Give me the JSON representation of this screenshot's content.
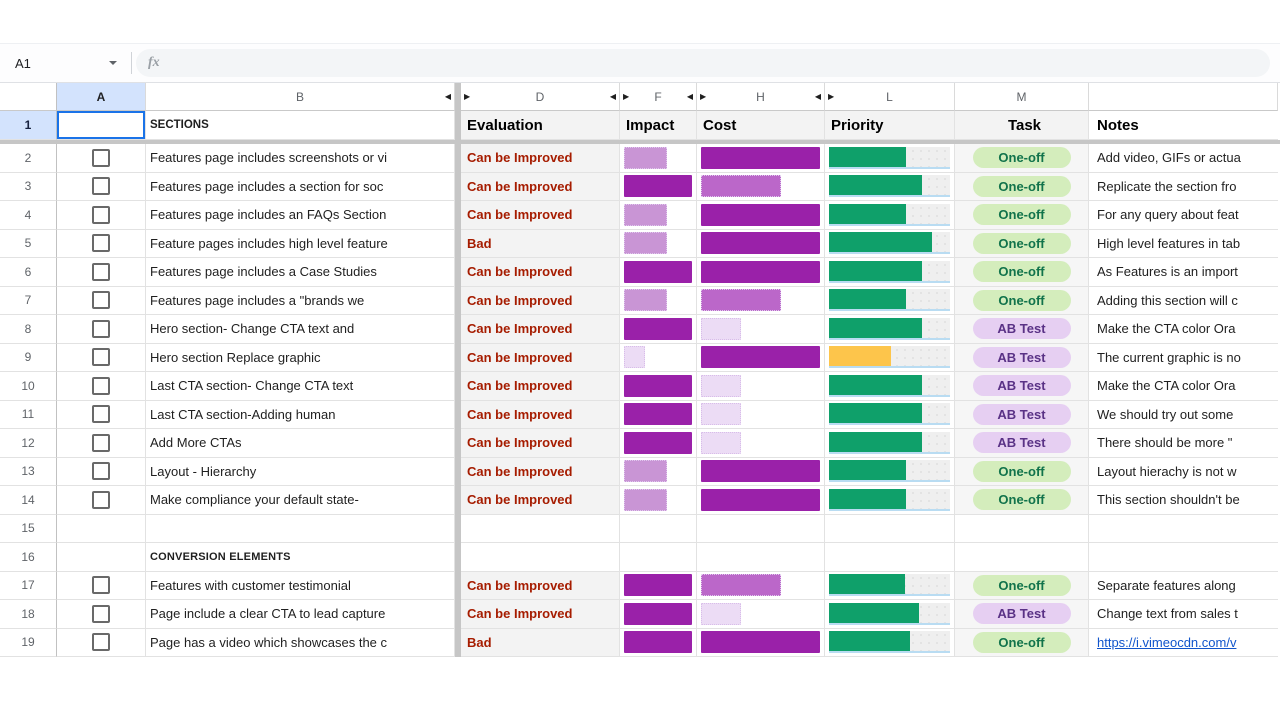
{
  "formula_bar": {
    "name_box": "A1",
    "fx_label": "fx"
  },
  "colors": {
    "bar_dark_purple": "#9a21a9",
    "bar_medium_purple": "#bb67c9",
    "bar_light_purple": "#c995d5",
    "bar_xlight_purple": "#ecdcf5",
    "priority_green": "#0fa06a",
    "priority_yellow": "#fdc54b",
    "priority_track": "#efefef",
    "eval_text": "#a61c00",
    "chip_oneoff_bg": "#d4edbc",
    "chip_oneoff_text": "#11734b",
    "chip_abtest_bg": "#e6cff2",
    "chip_abtest_text": "#5a3286",
    "selection_blue": "#1a73e8",
    "link_blue": "#1155cc",
    "frozen_divider": "#c6c6c6"
  },
  "columns": [
    {
      "letter": "A",
      "selected": true
    },
    {
      "letter": "B",
      "arrow_right": true
    },
    {
      "divider": true
    },
    {
      "letter": "D",
      "arrow_left": true,
      "arrow_right": true
    },
    {
      "letter": "F",
      "arrow_left": true,
      "arrow_right": true
    },
    {
      "letter": "H",
      "arrow_left": true,
      "arrow_right": true
    },
    {
      "letter": "L",
      "arrow_left": true
    },
    {
      "letter": "M"
    },
    {
      "letter": ""
    }
  ],
  "header_row": {
    "num": "1",
    "b": "SECTIONS",
    "d": "Evaluation",
    "f": "Impact",
    "h": "Cost",
    "l": "Priority",
    "m": "Task",
    "n": "Notes"
  },
  "rows": [
    {
      "num": "2",
      "checkbox": true,
      "section": "Features page includes screenshots or vi",
      "evaluation": "Can be Improved",
      "impact": {
        "shade": "light",
        "pct": 63
      },
      "cost": {
        "shade": "dark",
        "pct": 100
      },
      "priority": {
        "color": "green",
        "pct": 64
      },
      "task": "One-off",
      "notes": "Add video, GIFs or actua"
    },
    {
      "num": "3",
      "checkbox": true,
      "section": "Features page includes a section for soc",
      "evaluation": "Can be Improved",
      "impact": {
        "shade": "dark",
        "pct": 100
      },
      "cost": {
        "shade": "medium",
        "pct": 67
      },
      "priority": {
        "color": "green",
        "pct": 77
      },
      "task": "One-off",
      "notes": "Replicate the section fro"
    },
    {
      "num": "4",
      "checkbox": true,
      "section": "Features page includes an FAQs Section",
      "evaluation": "Can be Improved",
      "impact": {
        "shade": "light",
        "pct": 63
      },
      "cost": {
        "shade": "dark",
        "pct": 100
      },
      "priority": {
        "color": "green",
        "pct": 64
      },
      "task": "One-off",
      "notes": "For any query about feat"
    },
    {
      "num": "5",
      "checkbox": true,
      "section": "Feature pages includes high level feature",
      "evaluation": "Bad",
      "impact": {
        "shade": "light",
        "pct": 63
      },
      "cost": {
        "shade": "dark",
        "pct": 100
      },
      "priority": {
        "color": "green",
        "pct": 85
      },
      "task": "One-off",
      "notes": "High level features in tab"
    },
    {
      "num": "6",
      "checkbox": true,
      "section": "Features page includes a Case Studies",
      "evaluation": "Can be Improved",
      "impact": {
        "shade": "dark",
        "pct": 100
      },
      "cost": {
        "shade": "dark",
        "pct": 100
      },
      "priority": {
        "color": "green",
        "pct": 77
      },
      "task": "One-off",
      "notes": "As Features is an import"
    },
    {
      "num": "7",
      "checkbox": true,
      "section": "Features page includes a \"brands we",
      "evaluation": "Can be Improved",
      "impact": {
        "shade": "light",
        "pct": 63
      },
      "cost": {
        "shade": "medium",
        "pct": 67
      },
      "priority": {
        "color": "green",
        "pct": 64
      },
      "task": "One-off",
      "notes": "Adding this section will c"
    },
    {
      "num": "8",
      "checkbox": true,
      "section": "Hero section- Change CTA text and",
      "evaluation": "Can be Improved",
      "impact": {
        "shade": "dark",
        "pct": 100
      },
      "cost": {
        "shade": "xlight",
        "pct": 34
      },
      "priority": {
        "color": "green",
        "pct": 77
      },
      "task": "AB Test",
      "notes": "Make the CTA color Ora"
    },
    {
      "num": "9",
      "checkbox": true,
      "section": "Hero section Replace graphic",
      "evaluation": "Can be Improved",
      "impact": {
        "shade": "xlight",
        "pct": 31
      },
      "cost": {
        "shade": "dark",
        "pct": 100
      },
      "priority": {
        "color": "yellow",
        "pct": 51
      },
      "task": "AB Test",
      "notes": "The current graphic is no"
    },
    {
      "num": "10",
      "checkbox": true,
      "section": "Last CTA section- Change CTA text",
      "evaluation": "Can be Improved",
      "impact": {
        "shade": "dark",
        "pct": 100
      },
      "cost": {
        "shade": "xlight",
        "pct": 34
      },
      "priority": {
        "color": "green",
        "pct": 77
      },
      "task": "AB Test",
      "notes": "Make the CTA color Ora"
    },
    {
      "num": "11",
      "checkbox": true,
      "section": "Last CTA section-Adding human",
      "evaluation": "Can be Improved",
      "impact": {
        "shade": "dark",
        "pct": 100
      },
      "cost": {
        "shade": "xlight",
        "pct": 34
      },
      "priority": {
        "color": "green",
        "pct": 77
      },
      "task": "AB Test",
      "notes": "We should try out some"
    },
    {
      "num": "12",
      "checkbox": true,
      "section": "Add More CTAs",
      "evaluation": "Can be Improved",
      "impact": {
        "shade": "dark",
        "pct": 100
      },
      "cost": {
        "shade": "xlight",
        "pct": 34
      },
      "priority": {
        "color": "green",
        "pct": 77
      },
      "task": "AB Test",
      "notes": " There should be more \""
    },
    {
      "num": "13",
      "checkbox": true,
      "section": "Layout - Hierarchy",
      "evaluation": "Can be Improved",
      "impact": {
        "shade": "light",
        "pct": 63
      },
      "cost": {
        "shade": "dark",
        "pct": 100
      },
      "priority": {
        "color": "green",
        "pct": 64
      },
      "task": "One-off",
      "notes": "Layout hierachy is not w"
    },
    {
      "num": "14",
      "checkbox": true,
      "section": "Make compliance your default state-",
      "evaluation": "Can be Improved",
      "impact": {
        "shade": "light",
        "pct": 63
      },
      "cost": {
        "shade": "dark",
        "pct": 100
      },
      "priority": {
        "color": "green",
        "pct": 64
      },
      "task": "One-off",
      "notes": "This section shouldn't be"
    },
    {
      "num": "15",
      "checkbox": false
    },
    {
      "num": "16",
      "checkbox": false,
      "section": "CONVERSION ELEMENTS",
      "section_header": true
    },
    {
      "num": "17",
      "checkbox": true,
      "section": "Features with customer testimonial",
      "evaluation": "Can be Improved",
      "impact": {
        "shade": "dark",
        "pct": 100
      },
      "cost": {
        "shade": "medium",
        "pct": 67
      },
      "priority": {
        "color": "green",
        "pct": 63
      },
      "task": "One-off",
      "notes": "Separate features along"
    },
    {
      "num": "18",
      "checkbox": true,
      "section": "Page include a clear CTA to lead capture",
      "evaluation": "Can be Improved",
      "impact": {
        "shade": "dark",
        "pct": 100
      },
      "cost": {
        "shade": "xlight",
        "pct": 34
      },
      "priority": {
        "color": "green",
        "pct": 74
      },
      "task": "AB Test",
      "notes": "Change text from sales t"
    },
    {
      "num": "19",
      "checkbox": true,
      "section": "Page has a video which showcases the c",
      "evaluation": "Bad",
      "impact": {
        "shade": "dark",
        "pct": 100
      },
      "cost": {
        "shade": "dark",
        "pct": 100
      },
      "priority": {
        "color": "green",
        "pct": 67
      },
      "task": "One-off",
      "notes": "https://i.vimeocdn.com/v",
      "notes_link": true
    }
  ]
}
